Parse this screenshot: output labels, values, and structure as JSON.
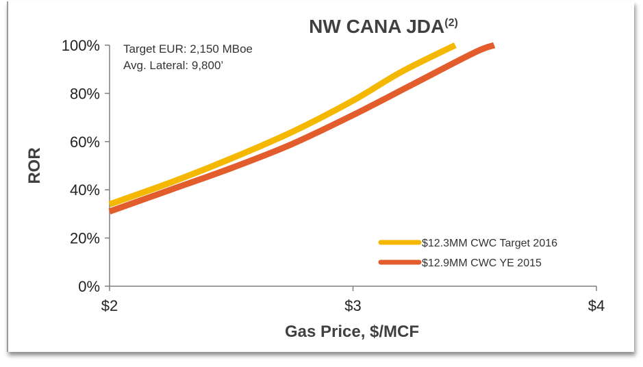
{
  "chart_data": {
    "type": "line",
    "title": "NW CANA JDA",
    "title_superscript": "(2)",
    "xlabel": "Gas Price, $/MCF",
    "ylabel": "ROR",
    "xlim": [
      2,
      4
    ],
    "ylim": [
      0,
      100
    ],
    "x_ticks": [
      {
        "value": 2,
        "label": "$2"
      },
      {
        "value": 3,
        "label": "$3"
      },
      {
        "value": 4,
        "label": "$4"
      }
    ],
    "y_ticks": [
      {
        "value": 0,
        "label": "0%"
      },
      {
        "value": 20,
        "label": "20%"
      },
      {
        "value": 40,
        "label": "40%"
      },
      {
        "value": 60,
        "label": "60%"
      },
      {
        "value": 80,
        "label": "80%"
      },
      {
        "value": 100,
        "label": "100%"
      }
    ],
    "annotations": [
      "Target EUR: 2,150 MBoe",
      "Avg. Lateral: 9,800’"
    ],
    "grid": false,
    "legend_position": "bottom-right",
    "series": [
      {
        "name": "$12.3MM CWC Target 2016",
        "color": "#f5b800",
        "points": [
          {
            "x": 2.0,
            "y": 34
          },
          {
            "x": 2.25,
            "y": 43
          },
          {
            "x": 2.5,
            "y": 53
          },
          {
            "x": 2.75,
            "y": 64
          },
          {
            "x": 3.0,
            "y": 77
          },
          {
            "x": 3.2,
            "y": 89
          },
          {
            "x": 3.42,
            "y": 100
          }
        ]
      },
      {
        "name": "$12.9MM CWC YE 2015",
        "color": "#e35c2b",
        "points": [
          {
            "x": 2.0,
            "y": 31
          },
          {
            "x": 2.25,
            "y": 40
          },
          {
            "x": 2.5,
            "y": 49
          },
          {
            "x": 2.75,
            "y": 59
          },
          {
            "x": 3.0,
            "y": 71
          },
          {
            "x": 3.25,
            "y": 84
          },
          {
            "x": 3.5,
            "y": 97
          },
          {
            "x": 3.58,
            "y": 100
          }
        ]
      }
    ]
  }
}
